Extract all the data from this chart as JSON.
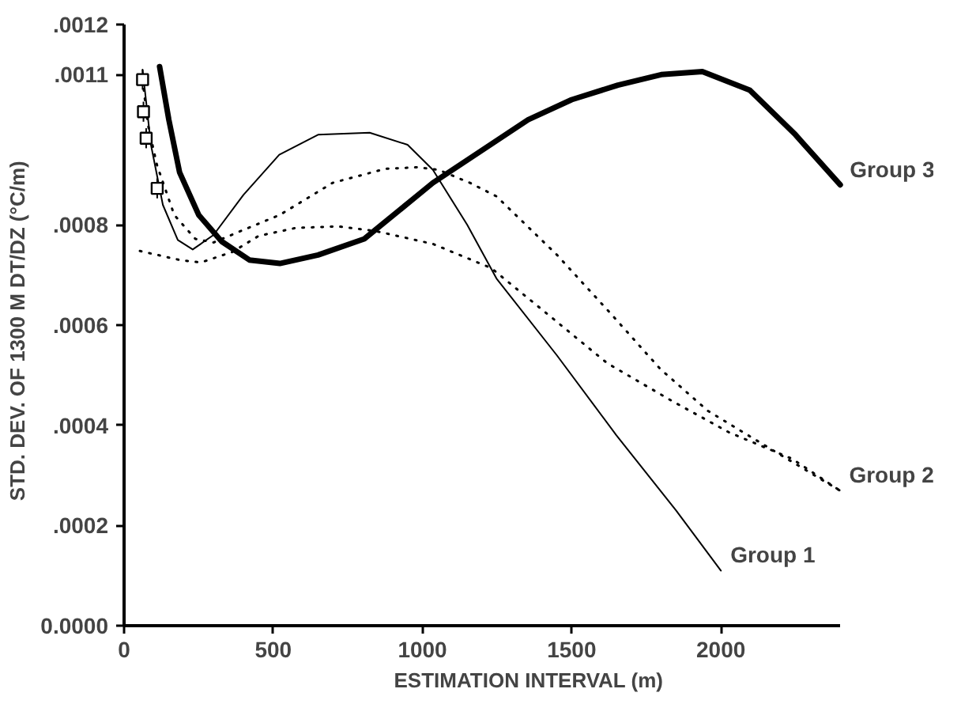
{
  "chart_data": {
    "type": "line",
    "xlabel": "ESTIMATION INTERVAL (m)",
    "ylabel": "STD. DEV. OF 1300 M DT/DZ   (°C/m)",
    "xlim": [
      0,
      2400
    ],
    "ylim": [
      0,
      0.0012
    ],
    "xticks": [
      0,
      500,
      1000,
      1500,
      2000
    ],
    "yticks": [
      {
        "value": 0,
        "label": "0.0000"
      },
      {
        "value": 0.0002,
        "label": ".0002"
      },
      {
        "value": 0.0004,
        "label": ".0004"
      },
      {
        "value": 0.0006,
        "label": ".0006"
      },
      {
        "value": 0.0008,
        "label": ".0008"
      },
      {
        "value": 0.0011,
        "label": ".0011"
      },
      {
        "value": 0.0012,
        "label": ".0012"
      }
    ],
    "grid": false,
    "series": [
      {
        "name": "Group 1",
        "color": "#000000",
        "line_style": "solid",
        "x": [
          62,
          90,
          130,
          180,
          230,
          300,
          400,
          520,
          650,
          823,
          950,
          1035,
          1150,
          1248,
          1450,
          1650,
          1850,
          2000
        ],
        "values": [
          0.00111,
          0.00096,
          0.00084,
          0.00077,
          0.000751,
          0.00078,
          0.00086,
          0.00094,
          0.00098,
          0.000984,
          0.00096,
          0.00091,
          0.0008,
          0.000693,
          0.00054,
          0.00038,
          0.00023,
          0.00011
        ]
      },
      {
        "color": "#000000",
        "line_style": "dotted",
        "x": [
          62,
          80,
          110,
          168,
          239,
          300,
          400,
          522,
          699,
          876,
          982,
          1053,
          1159,
          1248,
          1451,
          1637,
          1796,
          1956,
          2133,
          2398
        ],
        "values": [
          0.00109,
          0.001,
          0.00092,
          0.00082,
          0.000772,
          0.000765,
          0.00079,
          0.00082,
          0.000884,
          0.000912,
          0.000915,
          0.00091,
          0.000884,
          0.000857,
          0.00074,
          0.000619,
          0.000513,
          0.000429,
          0.000365,
          0.00027
        ]
      },
      {
        "name": "Group 2",
        "color": "#000000",
        "line_style": "dotted",
        "x": [
          53,
          186,
          257,
          363,
          451,
          575,
          717,
          841,
          1035,
          1230,
          1425,
          1619,
          1832,
          2027,
          2239,
          2398
        ],
        "values": [
          0.000748,
          0.00073,
          0.000725,
          0.000746,
          0.000778,
          0.000794,
          0.000797,
          0.000788,
          0.000762,
          0.000714,
          0.000619,
          0.000524,
          0.00045,
          0.000386,
          0.000333,
          0.00027
        ]
      },
      {
        "name": "Group 3",
        "color": "#000000",
        "line_style": "solid",
        "x": [
          119,
          150,
          186,
          250,
          327,
          420,
          522,
          650,
          805,
          1035,
          1248,
          1354,
          1500,
          1655,
          1800,
          1938,
          2097,
          2250,
          2400
        ],
        "values": [
          0.001116,
          0.00101,
          0.000905,
          0.00082,
          0.000767,
          0.00073,
          0.000723,
          0.00074,
          0.000772,
          0.000884,
          0.000968,
          0.00101,
          0.00105,
          0.001079,
          0.0011,
          0.001106,
          0.001069,
          0.00098,
          0.00088
        ]
      },
      {
        "type": "scatter",
        "marker": "square",
        "color": "#000000",
        "x": [
          62,
          65,
          74,
          111
        ],
        "values": [
          0.00109,
          0.001026,
          0.000973,
          0.000873
        ],
        "errors": [
          2e-05,
          2e-05,
          2e-05,
          2e-05
        ]
      }
    ]
  }
}
